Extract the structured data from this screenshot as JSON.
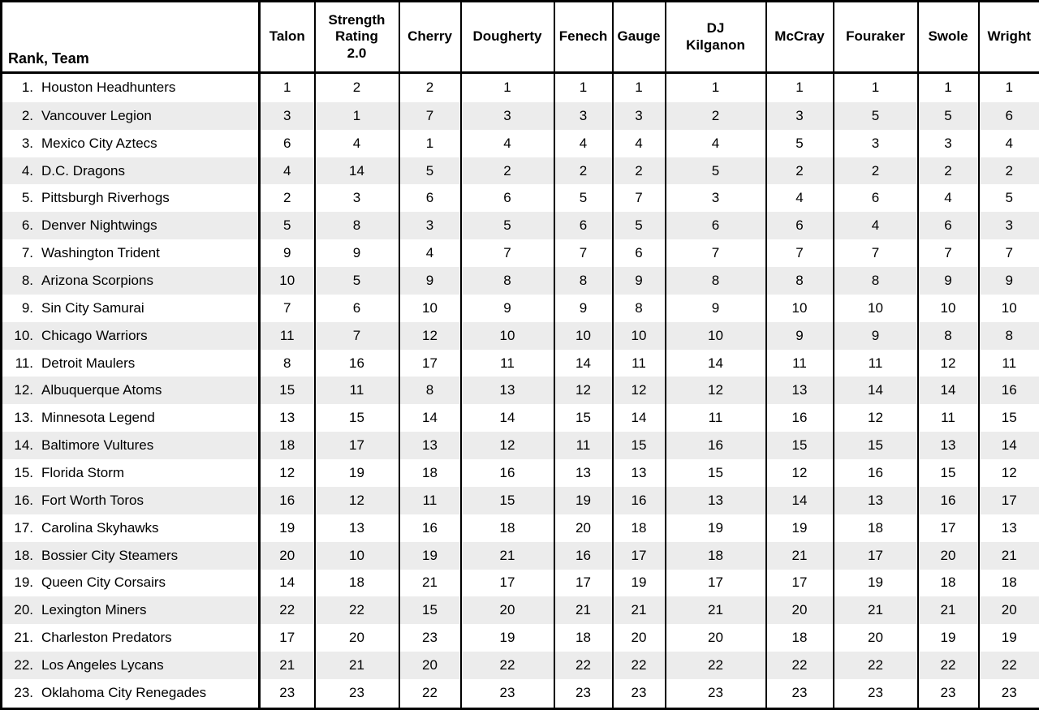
{
  "colors": {
    "background": "#ffffff",
    "stripe": "#ececec",
    "border": "#000000",
    "text": "#000000"
  },
  "table": {
    "first_col_header": "Rank, Team",
    "columns": [
      "Talon",
      "Strength\nRating\n2.0",
      "Cherry",
      "Dougherty",
      "Fenech",
      "Gauge",
      "DJ\nKilganon",
      "McCray",
      "Fouraker",
      "Swole",
      "Wright"
    ],
    "rows": [
      {
        "rank": "1.",
        "team": "Houston Headhunters",
        "values": [
          1,
          2,
          2,
          1,
          1,
          1,
          1,
          1,
          1,
          1,
          1
        ]
      },
      {
        "rank": "2.",
        "team": "Vancouver Legion",
        "values": [
          3,
          1,
          7,
          3,
          3,
          3,
          2,
          3,
          5,
          5,
          6
        ]
      },
      {
        "rank": "3.",
        "team": "Mexico City Aztecs",
        "values": [
          6,
          4,
          1,
          4,
          4,
          4,
          4,
          5,
          3,
          3,
          4
        ]
      },
      {
        "rank": "4.",
        "team": "D.C. Dragons",
        "values": [
          4,
          14,
          5,
          2,
          2,
          2,
          5,
          2,
          2,
          2,
          2
        ]
      },
      {
        "rank": "5.",
        "team": "Pittsburgh Riverhogs",
        "values": [
          2,
          3,
          6,
          6,
          5,
          7,
          3,
          4,
          6,
          4,
          5
        ]
      },
      {
        "rank": "6.",
        "team": "Denver Nightwings",
        "values": [
          5,
          8,
          3,
          5,
          6,
          5,
          6,
          6,
          4,
          6,
          3
        ]
      },
      {
        "rank": "7.",
        "team": "Washington Trident",
        "values": [
          9,
          9,
          4,
          7,
          7,
          6,
          7,
          7,
          7,
          7,
          7
        ]
      },
      {
        "rank": "8.",
        "team": "Arizona Scorpions",
        "values": [
          10,
          5,
          9,
          8,
          8,
          9,
          8,
          8,
          8,
          9,
          9
        ]
      },
      {
        "rank": "9.",
        "team": "Sin City Samurai",
        "values": [
          7,
          6,
          10,
          9,
          9,
          8,
          9,
          10,
          10,
          10,
          10
        ]
      },
      {
        "rank": "10.",
        "team": "Chicago Warriors",
        "values": [
          11,
          7,
          12,
          10,
          10,
          10,
          10,
          9,
          9,
          8,
          8
        ]
      },
      {
        "rank": "11.",
        "team": "Detroit Maulers",
        "values": [
          8,
          16,
          17,
          11,
          14,
          11,
          14,
          11,
          11,
          12,
          11
        ]
      },
      {
        "rank": "12.",
        "team": "Albuquerque Atoms",
        "values": [
          15,
          11,
          8,
          13,
          12,
          12,
          12,
          13,
          14,
          14,
          16
        ]
      },
      {
        "rank": "13.",
        "team": "Minnesota Legend",
        "values": [
          13,
          15,
          14,
          14,
          15,
          14,
          11,
          16,
          12,
          11,
          15
        ]
      },
      {
        "rank": "14.",
        "team": "Baltimore Vultures",
        "values": [
          18,
          17,
          13,
          12,
          11,
          15,
          16,
          15,
          15,
          13,
          14
        ]
      },
      {
        "rank": "15.",
        "team": "Florida Storm",
        "values": [
          12,
          19,
          18,
          16,
          13,
          13,
          15,
          12,
          16,
          15,
          12
        ]
      },
      {
        "rank": "16.",
        "team": "Fort Worth Toros",
        "values": [
          16,
          12,
          11,
          15,
          19,
          16,
          13,
          14,
          13,
          16,
          17
        ]
      },
      {
        "rank": "17.",
        "team": "Carolina Skyhawks",
        "values": [
          19,
          13,
          16,
          18,
          20,
          18,
          19,
          19,
          18,
          17,
          13
        ]
      },
      {
        "rank": "18.",
        "team": "Bossier City Steamers",
        "values": [
          20,
          10,
          19,
          21,
          16,
          17,
          18,
          21,
          17,
          20,
          21
        ]
      },
      {
        "rank": "19.",
        "team": "Queen City Corsairs",
        "values": [
          14,
          18,
          21,
          17,
          17,
          19,
          17,
          17,
          19,
          18,
          18
        ]
      },
      {
        "rank": "20.",
        "team": "Lexington Miners",
        "values": [
          22,
          22,
          15,
          20,
          21,
          21,
          21,
          20,
          21,
          21,
          20
        ]
      },
      {
        "rank": "21.",
        "team": "Charleston Predators",
        "values": [
          17,
          20,
          23,
          19,
          18,
          20,
          20,
          18,
          20,
          19,
          19
        ]
      },
      {
        "rank": "22.",
        "team": "Los Angeles Lycans",
        "values": [
          21,
          21,
          20,
          22,
          22,
          22,
          22,
          22,
          22,
          22,
          22
        ]
      },
      {
        "rank": "23.",
        "team": "Oklahoma City Renegades",
        "values": [
          23,
          23,
          22,
          23,
          23,
          23,
          23,
          23,
          23,
          23,
          23
        ]
      }
    ]
  },
  "chart_data": {
    "type": "table",
    "title": "Team power rankings by rater",
    "row_header": "Rank, Team",
    "columns": [
      "Talon",
      "Strength Rating 2.0",
      "Cherry",
      "Dougherty",
      "Fenech",
      "Gauge",
      "DJ Kilganon",
      "McCray",
      "Fouraker",
      "Swole",
      "Wright"
    ],
    "rows": [
      {
        "rank": 1,
        "team": "Houston Headhunters",
        "values": [
          1,
          2,
          2,
          1,
          1,
          1,
          1,
          1,
          1,
          1,
          1
        ]
      },
      {
        "rank": 2,
        "team": "Vancouver Legion",
        "values": [
          3,
          1,
          7,
          3,
          3,
          3,
          2,
          3,
          5,
          5,
          6
        ]
      },
      {
        "rank": 3,
        "team": "Mexico City Aztecs",
        "values": [
          6,
          4,
          1,
          4,
          4,
          4,
          4,
          5,
          3,
          3,
          4
        ]
      },
      {
        "rank": 4,
        "team": "D.C. Dragons",
        "values": [
          4,
          14,
          5,
          2,
          2,
          2,
          5,
          2,
          2,
          2,
          2
        ]
      },
      {
        "rank": 5,
        "team": "Pittsburgh Riverhogs",
        "values": [
          2,
          3,
          6,
          6,
          5,
          7,
          3,
          4,
          6,
          4,
          5
        ]
      },
      {
        "rank": 6,
        "team": "Denver Nightwings",
        "values": [
          5,
          8,
          3,
          5,
          6,
          5,
          6,
          6,
          4,
          6,
          3
        ]
      },
      {
        "rank": 7,
        "team": "Washington Trident",
        "values": [
          9,
          9,
          4,
          7,
          7,
          6,
          7,
          7,
          7,
          7,
          7
        ]
      },
      {
        "rank": 8,
        "team": "Arizona Scorpions",
        "values": [
          10,
          5,
          9,
          8,
          8,
          9,
          8,
          8,
          8,
          9,
          9
        ]
      },
      {
        "rank": 9,
        "team": "Sin City Samurai",
        "values": [
          7,
          6,
          10,
          9,
          9,
          8,
          9,
          10,
          10,
          10,
          10
        ]
      },
      {
        "rank": 10,
        "team": "Chicago Warriors",
        "values": [
          11,
          7,
          12,
          10,
          10,
          10,
          10,
          9,
          9,
          8,
          8
        ]
      },
      {
        "rank": 11,
        "team": "Detroit Maulers",
        "values": [
          8,
          16,
          17,
          11,
          14,
          11,
          14,
          11,
          11,
          12,
          11
        ]
      },
      {
        "rank": 12,
        "team": "Albuquerque Atoms",
        "values": [
          15,
          11,
          8,
          13,
          12,
          12,
          12,
          13,
          14,
          14,
          16
        ]
      },
      {
        "rank": 13,
        "team": "Minnesota Legend",
        "values": [
          13,
          15,
          14,
          14,
          15,
          14,
          11,
          16,
          12,
          11,
          15
        ]
      },
      {
        "rank": 14,
        "team": "Baltimore Vultures",
        "values": [
          18,
          17,
          13,
          12,
          11,
          15,
          16,
          15,
          15,
          13,
          14
        ]
      },
      {
        "rank": 15,
        "team": "Florida Storm",
        "values": [
          12,
          19,
          18,
          16,
          13,
          13,
          15,
          12,
          16,
          15,
          12
        ]
      },
      {
        "rank": 16,
        "team": "Fort Worth Toros",
        "values": [
          16,
          12,
          11,
          15,
          19,
          16,
          13,
          14,
          13,
          16,
          17
        ]
      },
      {
        "rank": 17,
        "team": "Carolina Skyhawks",
        "values": [
          19,
          13,
          16,
          18,
          20,
          18,
          19,
          19,
          18,
          17,
          13
        ]
      },
      {
        "rank": 18,
        "team": "Bossier City Steamers",
        "values": [
          20,
          10,
          19,
          21,
          16,
          17,
          18,
          21,
          17,
          20,
          21
        ]
      },
      {
        "rank": 19,
        "team": "Queen City Corsairs",
        "values": [
          14,
          18,
          21,
          17,
          17,
          19,
          17,
          17,
          19,
          18,
          18
        ]
      },
      {
        "rank": 20,
        "team": "Lexington Miners",
        "values": [
          22,
          22,
          15,
          20,
          21,
          21,
          21,
          20,
          21,
          21,
          20
        ]
      },
      {
        "rank": 21,
        "team": "Charleston Predators",
        "values": [
          17,
          20,
          23,
          19,
          18,
          20,
          20,
          18,
          20,
          19,
          19
        ]
      },
      {
        "rank": 22,
        "team": "Los Angeles Lycans",
        "values": [
          21,
          21,
          20,
          22,
          22,
          22,
          22,
          22,
          22,
          22,
          22
        ]
      },
      {
        "rank": 23,
        "team": "Oklahoma City Renegades",
        "values": [
          23,
          23,
          22,
          23,
          23,
          23,
          23,
          23,
          23,
          23,
          23
        ]
      }
    ]
  }
}
